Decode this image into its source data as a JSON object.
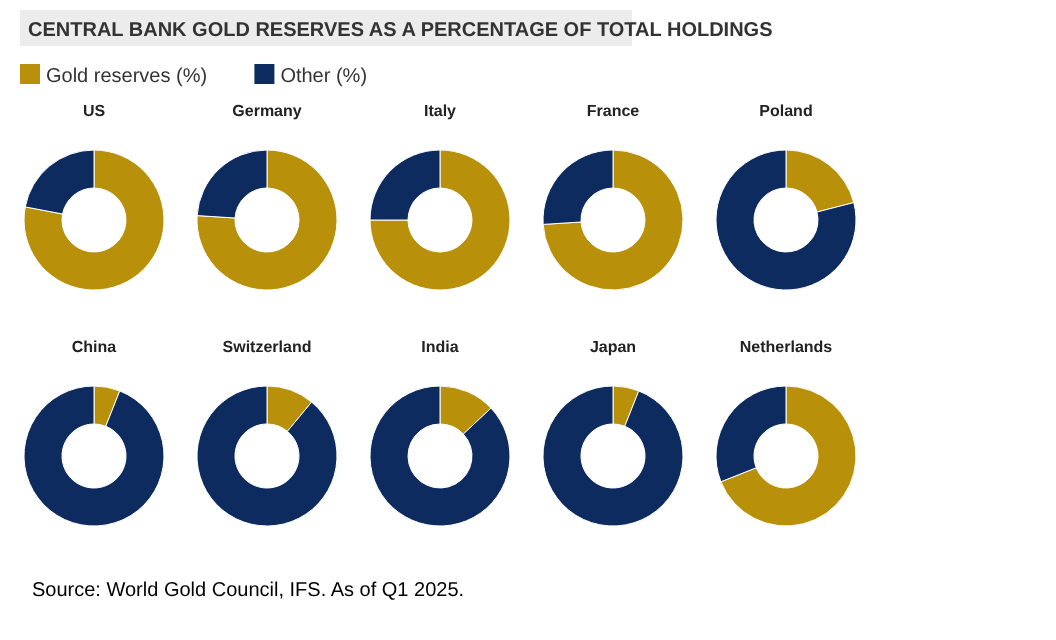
{
  "chart_data": [
    {
      "type": "other",
      "title": "CENTRAL BANK GOLD RESERVES AS A PERCENTAGE OF TOTAL HOLDINGS",
      "annotations": [
        "Source: World Gold Council, IFS. As of Q1 2025."
      ]
    },
    {
      "type": "donut",
      "title": "US",
      "categories": [
        "Gold reserves (%)",
        "Other (%)"
      ],
      "values": [
        78,
        22
      ],
      "colors": [
        "#b8900a",
        "#0d2b5e"
      ],
      "legend": "top right"
    },
    {
      "type": "donut",
      "title": "Germany",
      "categories": [
        null,
        null
      ],
      "values": [
        76,
        24
      ],
      "colors": [
        "#b8900a",
        "#0d2b5e"
      ]
    },
    {
      "type": "donut",
      "title": "Italy",
      "categories": [
        null,
        null
      ],
      "values": [
        75,
        25
      ],
      "colors": [
        "#b8900a",
        "#0d2b5e"
      ]
    },
    {
      "type": "donut",
      "title": "France",
      "categories": [
        null,
        null
      ],
      "values": [
        74,
        26
      ],
      "colors": [
        "#b8900a",
        "#0d2b5e"
      ]
    },
    {
      "type": "donut",
      "title": "Poland",
      "categories": [
        null,
        null
      ],
      "values": [
        21,
        79
      ],
      "colors": [
        "#b8900a",
        "#0d2b5e"
      ]
    },
    {
      "type": "donut",
      "title": "China",
      "categories": [
        null,
        null
      ],
      "values": [
        6,
        94
      ],
      "colors": [
        "#b8900a",
        "#0d2b5e"
      ]
    },
    {
      "type": "donut",
      "title": "Switzerland",
      "categories": [
        null,
        null
      ],
      "values": [
        11,
        89
      ],
      "colors": [
        "#b8900a",
        "#0d2b5e"
      ]
    },
    {
      "type": "donut",
      "title": "India",
      "categories": [
        null,
        null
      ],
      "values": [
        13,
        87
      ],
      "colors": [
        "#b8900a",
        "#0d2b5e"
      ]
    },
    {
      "type": "donut",
      "title": "Japan",
      "categories": [
        null,
        null
      ],
      "values": [
        6,
        94
      ],
      "colors": [
        "#b8900a",
        "#0d2b5e"
      ]
    },
    {
      "type": "donut",
      "title": "Netherlands",
      "categories": [
        null,
        null
      ],
      "values": [
        69,
        31
      ],
      "colors": [
        "#b8900a",
        "#0d2b5e"
      ]
    }
  ]
}
